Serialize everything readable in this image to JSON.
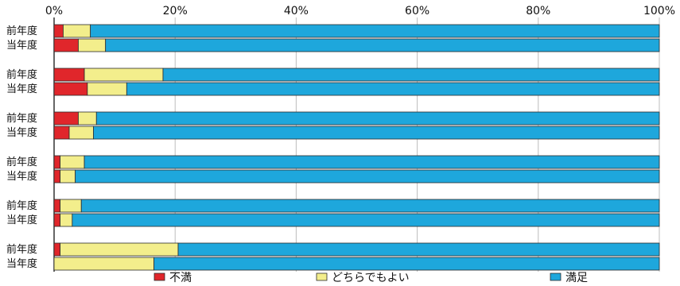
{
  "chart_data": {
    "type": "bar",
    "orientation": "horizontal",
    "stacked": "percent",
    "xlim": [
      0,
      100
    ],
    "x_ticks": [
      "0%",
      "20%",
      "40%",
      "60%",
      "80%",
      "100%"
    ],
    "grid": true,
    "legend_placement": "bottom",
    "categories": [
      "前年度",
      "当年度",
      "前年度",
      "当年度",
      "前年度",
      "当年度",
      "前年度",
      "当年度",
      "前年度",
      "当年度",
      "前年度",
      "当年度"
    ],
    "series": [
      {
        "name": "不満",
        "color": "#e0262b",
        "values": [
          1.5,
          4.0,
          5.0,
          5.5,
          4.0,
          2.5,
          1.0,
          1.0,
          1.0,
          1.0,
          1.0,
          0.0
        ]
      },
      {
        "name": "どちらでもよい",
        "color": "#f3ee8c",
        "values": [
          4.5,
          4.5,
          13.0,
          6.5,
          3.0,
          4.0,
          4.0,
          2.5,
          3.5,
          2.0,
          19.5,
          16.5
        ]
      },
      {
        "name": "満足",
        "color": "#1ea7dc",
        "values": [
          94.0,
          91.5,
          82.0,
          88.0,
          93.0,
          93.5,
          95.0,
          96.5,
          95.5,
          97.0,
          79.5,
          83.5
        ]
      }
    ]
  }
}
